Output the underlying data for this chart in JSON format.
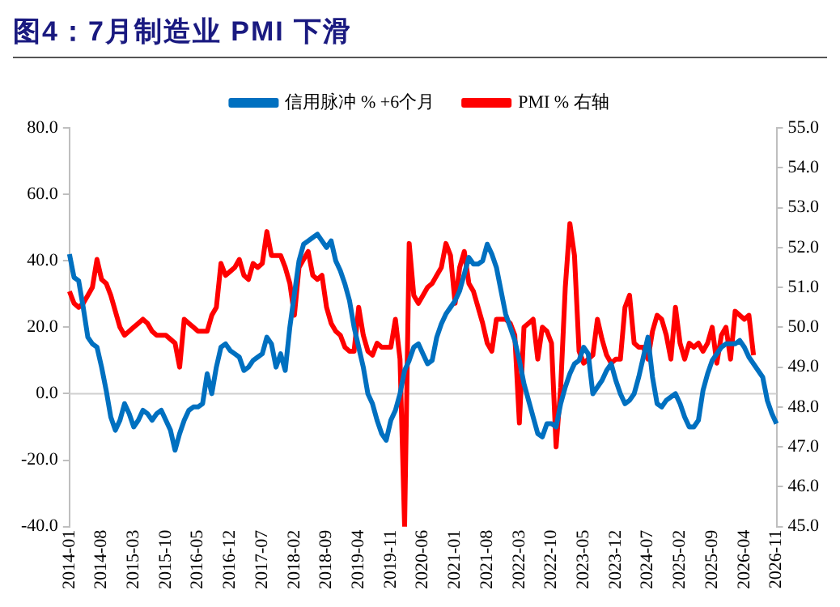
{
  "chart_data": {
    "type": "line",
    "title": "图4：7月制造业 PMI 下滑",
    "categories": [
      "2014-01",
      null,
      null,
      null,
      null,
      null,
      null,
      "2014-08",
      null,
      null,
      null,
      null,
      null,
      null,
      "2015-03",
      null,
      null,
      null,
      null,
      null,
      null,
      "2015-10",
      null,
      null,
      null,
      null,
      null,
      null,
      "2016-05",
      null,
      null,
      null,
      null,
      null,
      null,
      "2016-12",
      null,
      null,
      null,
      null,
      null,
      null,
      "2017-07",
      null,
      null,
      null,
      null,
      null,
      null,
      "2018-02",
      null,
      null,
      null,
      null,
      null,
      null,
      "2018-09",
      null,
      null,
      null,
      null,
      null,
      null,
      "2019-04",
      null,
      null,
      null,
      null,
      null,
      null,
      "2019-11",
      null,
      null,
      null,
      null,
      null,
      null,
      "2020-06",
      null,
      null,
      null,
      null,
      null,
      null,
      "2021-01",
      null,
      null,
      null,
      null,
      null,
      null,
      "2021-08",
      null,
      null,
      null,
      null,
      null,
      null,
      "2022-03",
      null,
      null,
      null,
      null,
      null,
      null,
      "2022-10",
      null,
      null,
      null,
      null,
      null,
      null,
      "2023-05",
      null,
      null,
      null,
      null,
      null,
      null,
      "2023-12",
      null,
      null,
      null,
      null,
      null,
      null,
      "2024-07",
      null,
      null,
      null,
      null,
      null,
      null,
      "2025-02",
      null,
      null,
      null,
      null,
      null,
      null,
      "2025-09",
      null,
      null,
      null,
      null,
      null,
      null,
      "2026-04",
      null,
      null,
      null,
      null,
      null,
      null,
      "2026-11"
    ],
    "series": [
      {
        "name": "信用脉冲 % +6个月",
        "color": "#0070c0",
        "values": [
          42,
          35,
          34,
          26,
          17,
          15,
          14,
          8,
          1,
          -7,
          -11,
          -8,
          -3,
          -6,
          -10,
          -8,
          -5,
          -6,
          -8,
          -6,
          -5,
          -8,
          -11,
          -17,
          -12,
          -8,
          -5,
          -4,
          -4,
          -3,
          6,
          0,
          8,
          14,
          15,
          13,
          12,
          11,
          7,
          8,
          10,
          11,
          12,
          17,
          15,
          8,
          12,
          7,
          20,
          30,
          40,
          45,
          46,
          47,
          48,
          46,
          44,
          46,
          40,
          37,
          33,
          28,
          20,
          14,
          8,
          0,
          -3,
          -8,
          -12,
          -14,
          -8,
          -5,
          0,
          7,
          10,
          14,
          15,
          12,
          9,
          10,
          17,
          21,
          24,
          26,
          28,
          31,
          36,
          41,
          39,
          39,
          40,
          45,
          42,
          38,
          31,
          24,
          20,
          16,
          10,
          3,
          -2,
          -7,
          -12,
          -13,
          -9,
          -9,
          -10,
          -3,
          2,
          6,
          9,
          10,
          14,
          12,
          0,
          2,
          4,
          7,
          9,
          4,
          0,
          -3,
          -2,
          0,
          5,
          11,
          17,
          5,
          -3,
          -4,
          -2,
          -1,
          0,
          -3,
          -7,
          -10,
          -10,
          -8,
          1,
          6,
          10,
          12,
          14,
          15,
          15,
          15,
          16,
          14,
          11,
          9,
          7,
          5,
          -2,
          -6,
          -9
        ]
      },
      {
        "name": "PMI % 右轴",
        "color": "#ff0000",
        "axis": "y2",
        "values": [
          50.9,
          50.6,
          50.5,
          50.6,
          50.8,
          51.0,
          51.7,
          51.2,
          51.1,
          50.8,
          50.4,
          50.0,
          49.8,
          49.9,
          50.0,
          50.1,
          50.2,
          50.1,
          49.9,
          49.8,
          49.8,
          49.8,
          49.7,
          49.6,
          49.0,
          50.2,
          50.1,
          50.0,
          49.9,
          49.9,
          49.9,
          50.3,
          50.5,
          51.6,
          51.3,
          51.4,
          51.5,
          51.7,
          51.3,
          51.2,
          51.6,
          51.5,
          51.6,
          52.4,
          51.8,
          51.8,
          51.8,
          51.5,
          51.1,
          50.3,
          51.5,
          51.7,
          51.9,
          51.3,
          51.2,
          51.3,
          50.5,
          50.1,
          49.9,
          49.8,
          49.5,
          49.4,
          49.4,
          50.5,
          49.8,
          49.4,
          49.3,
          49.6,
          49.5,
          49.5,
          49.5,
          50.2,
          49.2,
          45.0,
          52.1,
          50.8,
          50.6,
          50.8,
          51.0,
          51.1,
          51.3,
          51.5,
          52.1,
          51.8,
          50.6,
          51.5,
          51.9,
          51.1,
          50.9,
          50.5,
          50.1,
          49.6,
          49.4,
          50.2,
          50.2,
          50.2,
          50.1,
          49.8,
          47.6,
          50.0,
          50.1,
          50.2,
          49.2,
          50.0,
          49.9,
          49.6,
          47.0,
          48.5,
          51.0,
          52.6,
          51.8,
          49.4,
          49.1,
          49.2,
          49.3,
          50.2,
          49.7,
          49.3,
          49.1,
          49.2,
          49.2,
          50.5,
          50.8,
          49.6,
          49.5,
          49.5,
          49.2,
          49.9,
          50.3,
          50.2,
          49.8,
          49.2,
          50.5,
          49.6,
          49.2,
          49.6,
          49.5,
          49.6,
          49.4,
          49.6,
          50.0,
          49.1,
          49.8,
          50.0,
          49.2,
          50.4,
          50.3,
          50.2,
          50.3,
          49.3,
          null,
          null,
          null,
          null,
          null
        ]
      }
    ],
    "ylim": [
      -40,
      80
    ],
    "yticks": [
      {
        "value": -40,
        "label": "-40.0"
      },
      {
        "value": -20,
        "label": "-20.0"
      },
      {
        "value": 0,
        "label": "0.0"
      },
      {
        "value": 20,
        "label": "20.0"
      },
      {
        "value": 40,
        "label": "40.0"
      },
      {
        "value": 60,
        "label": "60.0"
      },
      {
        "value": 80,
        "label": "80.0"
      }
    ],
    "y2lim": [
      45,
      55
    ],
    "y2ticks": [
      {
        "value": 45,
        "label": "45.0"
      },
      {
        "value": 46,
        "label": "46.0"
      },
      {
        "value": 47,
        "label": "47.0"
      },
      {
        "value": 48,
        "label": "48.0"
      },
      {
        "value": 49,
        "label": "49.0"
      },
      {
        "value": 50,
        "label": "50.0"
      },
      {
        "value": 51,
        "label": "51.0"
      },
      {
        "value": 52,
        "label": "52.0"
      },
      {
        "value": 53,
        "label": "53.0"
      },
      {
        "value": 54,
        "label": "54.0"
      },
      {
        "value": 55,
        "label": "55.0"
      }
    ],
    "ref_lines": [
      {
        "axis": "y",
        "value": 0,
        "color": "#d0d0d0"
      }
    ],
    "grid": false,
    "legend": "top",
    "marker": "none",
    "line_style": "solid"
  }
}
